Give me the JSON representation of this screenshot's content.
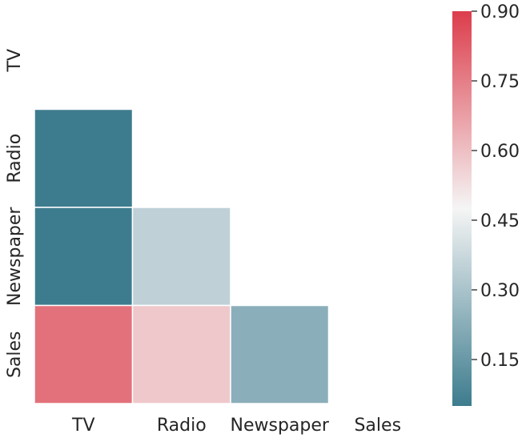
{
  "chart_data": {
    "type": "heatmap",
    "title": "",
    "xlabel": "",
    "ylabel": "",
    "variables": [
      "TV",
      "Radio",
      "Newspaper",
      "Sales"
    ],
    "mask": "upper-triangle-including-diagonal",
    "cells": [
      {
        "row": "Radio",
        "col": "TV",
        "value": 0.05
      },
      {
        "row": "Newspaper",
        "col": "TV",
        "value": 0.05
      },
      {
        "row": "Newspaper",
        "col": "Radio",
        "value": 0.35
      },
      {
        "row": "Sales",
        "col": "TV",
        "value": 0.78
      },
      {
        "row": "Sales",
        "col": "Radio",
        "value": 0.58
      },
      {
        "row": "Sales",
        "col": "Newspaper",
        "value": 0.23
      }
    ],
    "colorbar": {
      "range": [
        0.05,
        0.9
      ],
      "ticks": [
        0.15,
        0.3,
        0.45,
        0.6,
        0.75,
        0.9
      ],
      "tick_labels": [
        "0.15",
        "0.30",
        "0.45",
        "0.60",
        "0.75",
        "0.90"
      ],
      "colormap": "diverging teal-white-red",
      "low_color": "#3d7c8e",
      "mid_color": "#f5f5f5",
      "high_color": "#dc3d4b"
    },
    "grid": false,
    "legend": "colorbar-right"
  }
}
